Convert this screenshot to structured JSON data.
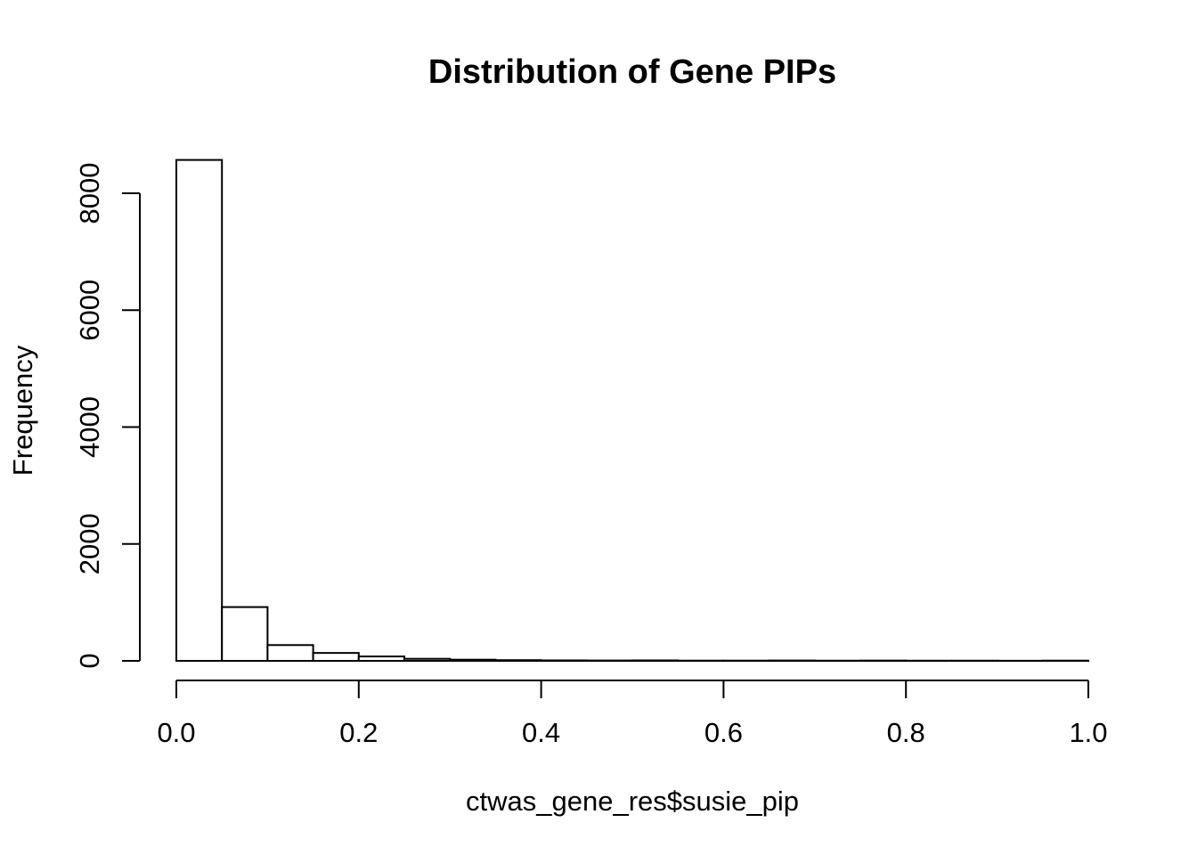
{
  "chart_data": {
    "type": "bar",
    "title": "Distribution of Gene PIPs",
    "xlabel": "ctwas_gene_res$susie_pip",
    "ylabel": "Frequency",
    "xlim": [
      0,
      1
    ],
    "ylim": [
      0,
      8000
    ],
    "x_ticks": [
      "0.0",
      "0.2",
      "0.4",
      "0.6",
      "0.8",
      "1.0"
    ],
    "y_ticks": [
      "0",
      "2000",
      "4000",
      "6000",
      "8000"
    ],
    "bin_width": 0.05,
    "bins": [
      {
        "x0": 0.0,
        "x1": 0.05,
        "value": 8570
      },
      {
        "x0": 0.05,
        "x1": 0.1,
        "value": 920
      },
      {
        "x0": 0.1,
        "x1": 0.15,
        "value": 270
      },
      {
        "x0": 0.15,
        "x1": 0.2,
        "value": 135
      },
      {
        "x0": 0.2,
        "x1": 0.25,
        "value": 75
      },
      {
        "x0": 0.25,
        "x1": 0.3,
        "value": 35
      },
      {
        "x0": 0.3,
        "x1": 0.35,
        "value": 20
      },
      {
        "x0": 0.35,
        "x1": 0.4,
        "value": 12
      },
      {
        "x0": 0.4,
        "x1": 0.45,
        "value": 8
      },
      {
        "x0": 0.45,
        "x1": 0.5,
        "value": 6
      },
      {
        "x0": 0.5,
        "x1": 0.55,
        "value": 8
      },
      {
        "x0": 0.55,
        "x1": 0.6,
        "value": 4
      },
      {
        "x0": 0.6,
        "x1": 0.65,
        "value": 4
      },
      {
        "x0": 0.65,
        "x1": 0.7,
        "value": 6
      },
      {
        "x0": 0.7,
        "x1": 0.75,
        "value": 3
      },
      {
        "x0": 0.75,
        "x1": 0.8,
        "value": 5
      },
      {
        "x0": 0.8,
        "x1": 0.85,
        "value": 3
      },
      {
        "x0": 0.85,
        "x1": 0.9,
        "value": 3
      },
      {
        "x0": 0.9,
        "x1": 0.95,
        "value": 2
      },
      {
        "x0": 0.95,
        "x1": 1.0,
        "value": 4
      }
    ],
    "grid": false,
    "legend": "none"
  }
}
